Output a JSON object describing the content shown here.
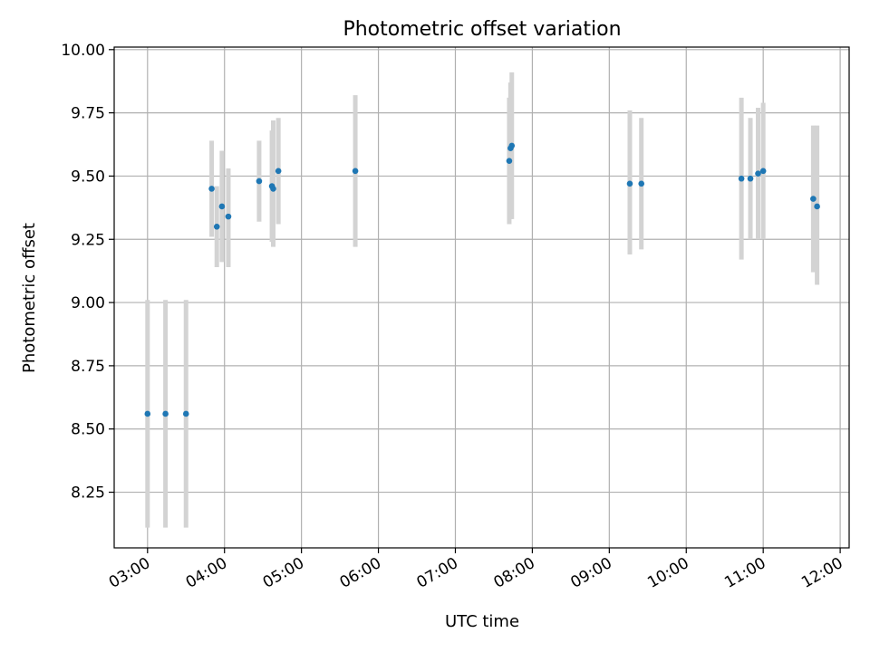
{
  "chart_data": {
    "type": "scatter",
    "title": "Photometric offset variation",
    "xlabel": "UTC time",
    "ylabel": "Photometric offset",
    "x_ticks": [
      "03:00",
      "04:00",
      "05:00",
      "06:00",
      "07:00",
      "08:00",
      "09:00",
      "10:00",
      "11:00",
      "12:00"
    ],
    "y_ticks": [
      "8.25",
      "8.50",
      "8.75",
      "9.00",
      "9.25",
      "9.50",
      "9.75",
      "10.00"
    ],
    "xlim": [
      "02:34",
      "12:07"
    ],
    "ylim": [
      8.03,
      10.01
    ],
    "grid": true,
    "colors": {
      "point": "#1f77b4",
      "errorbar": "#d3d3d3",
      "grid": "#b0b0b0"
    },
    "points": [
      {
        "x": "03:00",
        "y": 8.56,
        "err_low": 8.11,
        "err_high": 9.01
      },
      {
        "x": "03:14",
        "y": 8.56,
        "err_low": 8.11,
        "err_high": 9.01
      },
      {
        "x": "03:30",
        "y": 8.56,
        "err_low": 8.11,
        "err_high": 9.01
      },
      {
        "x": "03:50",
        "y": 9.45,
        "err_low": 9.26,
        "err_high": 9.64
      },
      {
        "x": "03:54",
        "y": 9.3,
        "err_low": 9.14,
        "err_high": 9.46
      },
      {
        "x": "03:58",
        "y": 9.38,
        "err_low": 9.16,
        "err_high": 9.6
      },
      {
        "x": "04:03",
        "y": 9.34,
        "err_low": 9.14,
        "err_high": 9.53
      },
      {
        "x": "04:27",
        "y": 9.48,
        "err_low": 9.32,
        "err_high": 9.64
      },
      {
        "x": "04:37",
        "y": 9.46,
        "err_low": 9.24,
        "err_high": 9.68
      },
      {
        "x": "04:38",
        "y": 9.45,
        "err_low": 9.22,
        "err_high": 9.72
      },
      {
        "x": "04:42",
        "y": 9.52,
        "err_low": 9.31,
        "err_high": 9.73
      },
      {
        "x": "05:42",
        "y": 9.52,
        "err_low": 9.22,
        "err_high": 9.82
      },
      {
        "x": "07:42",
        "y": 9.56,
        "err_low": 9.31,
        "err_high": 9.81
      },
      {
        "x": "07:43",
        "y": 9.61,
        "err_low": 9.33,
        "err_high": 9.87
      },
      {
        "x": "07:44",
        "y": 9.62,
        "err_low": 9.33,
        "err_high": 9.91
      },
      {
        "x": "09:16",
        "y": 9.47,
        "err_low": 9.19,
        "err_high": 9.76
      },
      {
        "x": "09:25",
        "y": 9.47,
        "err_low": 9.21,
        "err_high": 9.73
      },
      {
        "x": "10:43",
        "y": 9.49,
        "err_low": 9.17,
        "err_high": 9.81
      },
      {
        "x": "10:50",
        "y": 9.49,
        "err_low": 9.25,
        "err_high": 9.73
      },
      {
        "x": "10:56",
        "y": 9.51,
        "err_low": 9.25,
        "err_high": 9.77
      },
      {
        "x": "11:00",
        "y": 9.52,
        "err_low": 9.25,
        "err_high": 9.79
      },
      {
        "x": "11:39",
        "y": 9.41,
        "err_low": 9.12,
        "err_high": 9.7
      },
      {
        "x": "11:42",
        "y": 9.38,
        "err_low": 9.07,
        "err_high": 9.7
      }
    ]
  }
}
